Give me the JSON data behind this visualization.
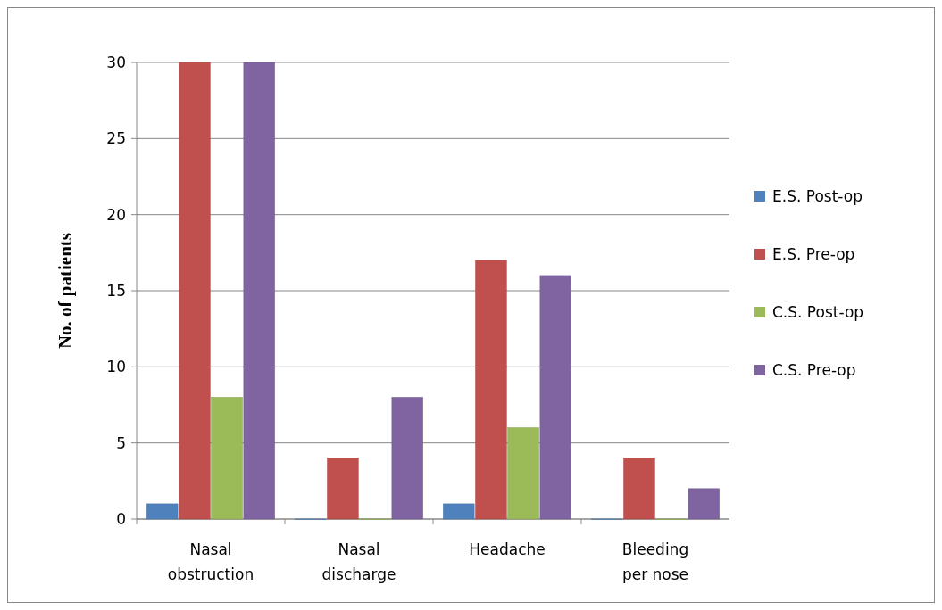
{
  "chart_data": {
    "type": "bar",
    "ylabel": "No. of patients",
    "categories": [
      "Nasal obstruction",
      "Nasal discharge",
      "Headache",
      "Bleeding per nose"
    ],
    "series": [
      {
        "name": "E.S. Post-op",
        "color": "#4f81bd",
        "values": [
          1,
          0,
          1,
          0
        ]
      },
      {
        "name": "E.S. Pre-op",
        "color": "#c0504d",
        "values": [
          30,
          4,
          17,
          4
        ]
      },
      {
        "name": "C.S. Post-op",
        "color": "#9bbb59",
        "values": [
          8,
          0,
          6,
          0
        ]
      },
      {
        "name": "C.S. Pre-op",
        "color": "#8064a2",
        "values": [
          30,
          8,
          16,
          2
        ]
      }
    ],
    "ylim": [
      0,
      30
    ],
    "yticks": [
      0,
      5,
      10,
      15,
      20,
      25,
      30
    ],
    "grid": "y",
    "legend": "right"
  }
}
